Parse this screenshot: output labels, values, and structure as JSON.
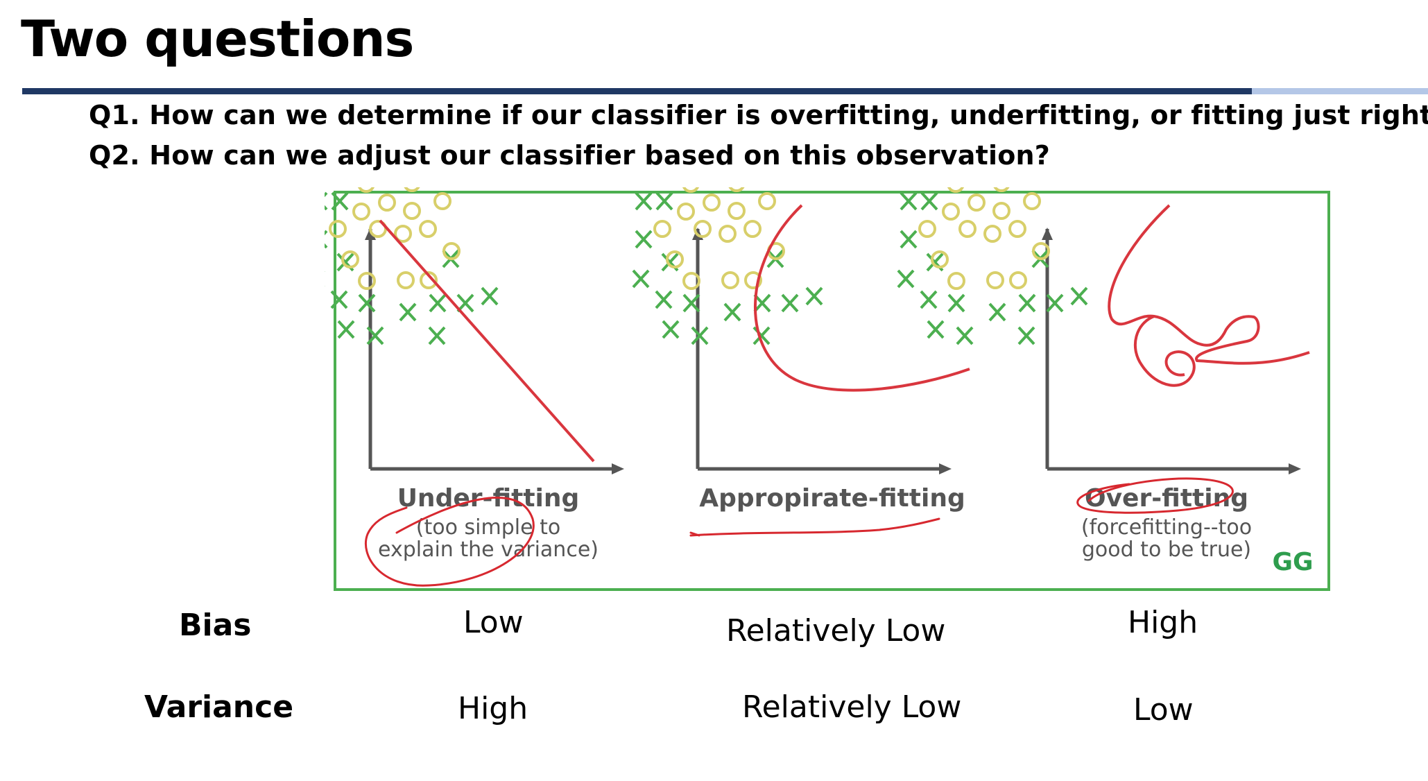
{
  "slide": {
    "title": "Two questions",
    "questions": [
      "Q1. How can we determine if our classifier is overfitting, underfitting, or fitting just right",
      "Q2. How can we adjust our classifier based on this observation?"
    ]
  },
  "figure": {
    "panels": [
      {
        "title": "Under-fitting",
        "caption_line1": "(too simple to",
        "caption_line2": "explain the variance)"
      },
      {
        "title": "Appropirate-fitting",
        "caption_line1": "",
        "caption_line2": ""
      },
      {
        "title": "Over-fitting",
        "caption_line1": "(forcefitting--too",
        "caption_line2": "good to be true)"
      }
    ],
    "logo_text": "GG",
    "colors": {
      "cross": "#4caf50",
      "circle": "#d8cf6a",
      "boundary": "#d9363e",
      "border": "#4caf50",
      "ink": "#d7282f"
    }
  },
  "table": {
    "bias": {
      "label": "Bias",
      "under": "Low",
      "appropriate": "Relatively Low",
      "over": "High"
    },
    "variance": {
      "label": "Variance",
      "under": "High",
      "appropriate": "Relatively Low",
      "over": "Low"
    }
  }
}
